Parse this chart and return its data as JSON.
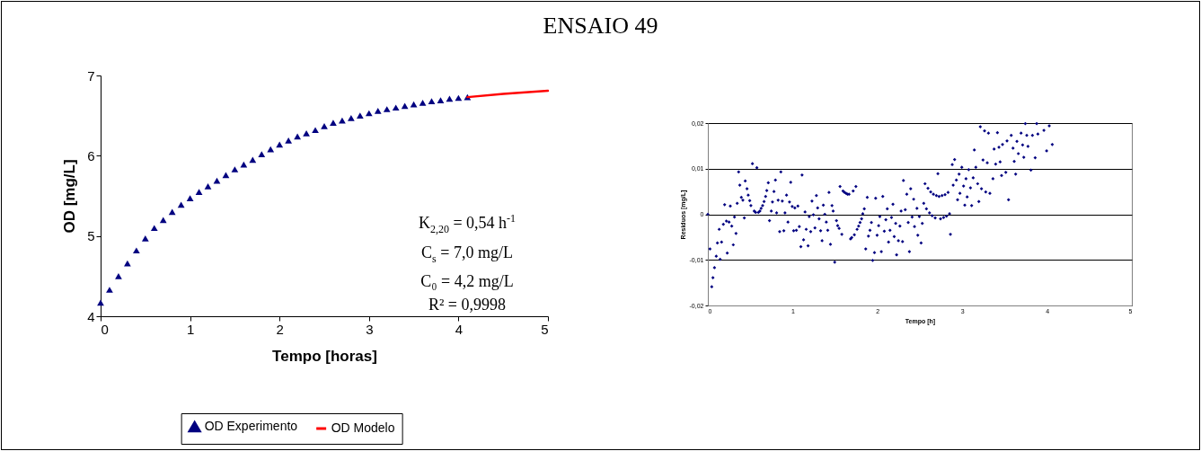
{
  "chart_data": [
    {
      "type": "scatter",
      "title": "ENSAIO 49",
      "xlabel": "Tempo [horas]",
      "ylabel": "OD [mg/L]",
      "xlim": [
        0,
        5
      ],
      "ylim": [
        4,
        7
      ],
      "xticks": [
        0,
        1,
        2,
        3,
        4,
        5
      ],
      "yticks": [
        4,
        5,
        6,
        7
      ],
      "grid": false,
      "legend": "bottom",
      "annotations": [
        "K$_{2,20}$ = 0,54 h$^{-1}$",
        "C$_{s}$ = 7,0 mg/L",
        "C₀ = 4,2 mg/L",
        "R² = 0,9998"
      ],
      "series": [
        {
          "name": "OD Experimento",
          "marker": "triangle",
          "color": "#000080",
          "x": [
            0,
            0.1,
            0.2,
            0.3,
            0.4,
            0.5,
            0.6,
            0.7,
            0.8,
            0.9,
            1.0,
            1.1,
            1.2,
            1.3,
            1.4,
            1.5,
            1.6,
            1.7,
            1.8,
            1.9,
            2.0,
            2.1,
            2.2,
            2.3,
            2.4,
            2.5,
            2.6,
            2.7,
            2.8,
            2.9,
            3.0,
            3.1,
            3.2,
            3.3,
            3.4,
            3.5,
            3.6,
            3.7,
            3.8,
            3.9,
            4.0,
            4.1
          ],
          "values": [
            4.17,
            4.33,
            4.5,
            4.66,
            4.82,
            4.97,
            5.1,
            5.2,
            5.3,
            5.39,
            5.47,
            5.55,
            5.62,
            5.69,
            5.76,
            5.83,
            5.89,
            5.95,
            6.02,
            6.08,
            6.14,
            6.19,
            6.24,
            6.28,
            6.32,
            6.37,
            6.41,
            6.44,
            6.47,
            6.5,
            6.53,
            6.56,
            6.58,
            6.6,
            6.62,
            6.64,
            6.66,
            6.68,
            6.69,
            6.71,
            6.72,
            6.73
          ]
        },
        {
          "name": "OD Modelo",
          "type": "line",
          "color": "#ff0000",
          "x": [
            4.1,
            4.5,
            5.0
          ],
          "values": [
            6.73,
            6.77,
            6.81
          ]
        }
      ]
    },
    {
      "type": "scatter",
      "xlabel": "Tempo [h]",
      "ylabel": "Residuos [mg/L]",
      "xlim": [
        0,
        5
      ],
      "ylim": [
        -0.02,
        0.02
      ],
      "xticks": [
        0,
        1,
        2,
        3,
        4,
        5
      ],
      "yticks": [
        {
          "value": -0.02,
          "label": "-0,02"
        },
        {
          "value": -0.01,
          "label": "-0,01"
        },
        0,
        {
          "value": 0.01,
          "label": "0,01"
        },
        {
          "value": 0.02,
          "label": "0,02"
        }
      ],
      "grid": "y",
      "marker": "diamond",
      "color": "#000080",
      "x": [
        0,
        0.025,
        0.046,
        0.06,
        0.078,
        0.099,
        0.113,
        0.134,
        0.145,
        0.162,
        0.183,
        0.198,
        0.219,
        0.229,
        0.25,
        0.265,
        0.282,
        0.3,
        0.314,
        0.332,
        0.346,
        0.363,
        0.377,
        0.395,
        0.413,
        0.43,
        0.441,
        0.462,
        0.476,
        0.494,
        0.508,
        0.526,
        0.547,
        0.564,
        0.578,
        0.596,
        0.614,
        0.628,
        0.646,
        0.663,
        0.681,
        0.695,
        0.713,
        0.727,
        0.748,
        0.762,
        0.78,
        0.797,
        0.811,
        0.829,
        0.847,
        0.861,
        0.878,
        0.896,
        0.91,
        0.928,
        0.945,
        0.963,
        0.977,
        0.995,
        1.012,
        1.026,
        1.044,
        1.062,
        1.079,
        1.097,
        1.111,
        1.129,
        1.146,
        1.16,
        1.182,
        1.196,
        1.213,
        1.228,
        1.245,
        1.263,
        1.28,
        1.295,
        1.312,
        1.33,
        1.347,
        1.362,
        1.379,
        1.397,
        1.414,
        1.429,
        1.446,
        1.464,
        1.478,
        1.496,
        1.517,
        1.531,
        1.548,
        1.559,
        1.58,
        1.594,
        1.612,
        1.63,
        1.647,
        1.665,
        1.683,
        1.697,
        1.714,
        1.728,
        1.746,
        1.76,
        1.778,
        1.795,
        1.813,
        1.827,
        1.845,
        1.862,
        1.88,
        1.894,
        1.912,
        1.929,
        1.944,
        1.965,
        1.979,
        1.996,
        2.014,
        2.028,
        2.046,
        2.063,
        2.081,
        2.099,
        2.116,
        2.131,
        2.148,
        2.166,
        2.183,
        2.198,
        2.215,
        2.226,
        2.247,
        2.265,
        2.279,
        2.296,
        2.307,
        2.328,
        2.346,
        2.363,
        2.377,
        2.392,
        2.409,
        2.427,
        2.437,
        2.466,
        2.476,
        2.494,
        2.515,
        2.529,
        2.546,
        2.561,
        2.578,
        2.596,
        2.614,
        2.628,
        2.646,
        2.66,
        2.681,
        2.695,
        2.713,
        2.727,
        2.744,
        2.762,
        2.78,
        2.797,
        2.815,
        2.833,
        2.85,
        2.861,
        2.882,
        2.893,
        2.91,
        2.931,
        2.945,
        2.963,
        2.973,
        2.995,
        3.016,
        3.03,
        3.044,
        3.058,
        3.076,
        3.097,
        3.111,
        3.129,
        3.143,
        3.16,
        3.182,
        3.196,
        3.213,
        3.227,
        3.245,
        3.263,
        3.277,
        3.295,
        3.309,
        3.326,
        3.362,
        3.376,
        3.394,
        3.415,
        3.433,
        3.447,
        3.464,
        3.475,
        3.514,
        3.528,
        3.546,
        3.578,
        3.599,
        3.613,
        3.63,
        3.645,
        3.662,
        3.694,
        3.712,
        3.726,
        3.744,
        3.761,
        3.775,
        3.81,
        3.828,
        3.86,
        3.878,
        3.892,
        3.963,
        3.995,
        4.026,
        4.062
      ],
      "values": [
        0,
        -0.0076,
        -0.0159,
        -0.0139,
        -0.0117,
        -0.0092,
        -0.0063,
        -0.0033,
        -0.0099,
        -0.0061,
        -0.0022,
        0.0021,
        -0.0015,
        -0.0085,
        -0.0017,
        0.0018,
        -0.0026,
        -0.0067,
        -0.0006,
        -0.0042,
        0.0024,
        0.0093,
        0.0064,
        0.0037,
        0.0031,
        -0.0008,
        0.0073,
        0.0056,
        0.0042,
        0.003,
        0.0019,
        0.0111,
        0.0007,
        0.0004,
        0.0102,
        0.0004,
        0.0007,
        0.0013,
        0.0019,
        0.0028,
        0.0039,
        0.0052,
        0.0069,
        -0.0014,
        0.0007,
        0.0027,
        0.005,
        0.0075,
        0.0003,
        0.0031,
        -0.0038,
        0.0093,
        0.0029,
        -0.0036,
        0.0003,
        0.0042,
        -0.0017,
        0.0027,
        0.007,
        0.0017,
        -0.0036,
        0.0014,
        -0.0035,
        0.0018,
        -0.0027,
        -0.0071,
        0.0086,
        -0.0056,
        0.0005,
        -0.0033,
        -0.0069,
        -0.0005,
        -0.0038,
        0.0029,
        -0.0001,
        -0.003,
        0.0041,
        0.0014,
        -0.001,
        -0.0036,
        -0.0058,
        0.002,
        0,
        -0.0017,
        -0.0035,
        0.0048,
        -0.0066,
        0.0019,
        0.0007,
        -0.0105,
        -0.0014,
        -0.0025,
        -0.0031,
        0.0061,
        -0.0044,
        0.0051,
        0.0048,
        0.0046,
        0.0044,
        0.0044,
        -0.0054,
        -0.0051,
        0.0051,
        -0.0045,
        0.0061,
        -0.0033,
        -0.0026,
        -0.0018,
        -0.001,
        0.0001,
        0.0012,
        -0.0076,
        0.0037,
        -0.0048,
        -0.0035,
        -0.0018,
        -0.0101,
        -0.0084,
        0.0035,
        -0.0046,
        -0.0025,
        -0.0005,
        -0.0082,
        0.0039,
        -0.0037,
        -0.0012,
        0.0012,
        -0.0061,
        -0.0035,
        -0.0007,
        0.0022,
        -0.0049,
        -0.002,
        -0.0089,
        -0.0058,
        -0.0026,
        0.0007,
        -0.006,
        0.0074,
        0.001,
        0.0044,
        -0.0018,
        -0.0082,
        0.0056,
        -0.0006,
        0.0033,
        -0.0027,
        0.0013,
        -0.0046,
        -0.0005,
        -0.0063,
        -0.002,
        0.0024,
        0.0067,
        0.0012,
        0.0057,
        0.0003,
        0.0049,
        -0.0003,
        0.0044,
        -0.0008,
        0.0041,
        0.0089,
        0.0039,
        -0.001,
        0.0041,
        -0.0007,
        0.0043,
        -0.0004,
        0.0048,
        0.0001,
        -0.0044,
        0.0109,
        0.0064,
        0.012,
        0.0075,
        0.0032,
        0.0088,
        0.0046,
        0.0103,
        0.0062,
        0.002,
        0.0078,
        0.0038,
        0.0098,
        0.0058,
        0.0019,
        0.008,
        0.0141,
        0.0103,
        0.0067,
        0.0028,
        0.0192,
        0.0056,
        0.0119,
        0.0183,
        0.0049,
        0.0113,
        0.0178,
        0.0046,
        0.0078,
        0.0143,
        0.011,
        0.0179,
        0.0147,
        0.0115,
        0.0085,
        0.0153,
        0.0092,
        0.0161,
        0.0032,
        0.0173,
        0.0145,
        0.0116,
        0.0088,
        0.016,
        0.0133,
        0.0178,
        0.0152,
        0.0125,
        0.0199,
        0.0173,
        0.0149,
        0.0097,
        0.0173,
        0.0124,
        0.0199,
        0.0176,
        0.0184,
        0.0139,
        0.0194,
        0.0153
      ]
    }
  ]
}
